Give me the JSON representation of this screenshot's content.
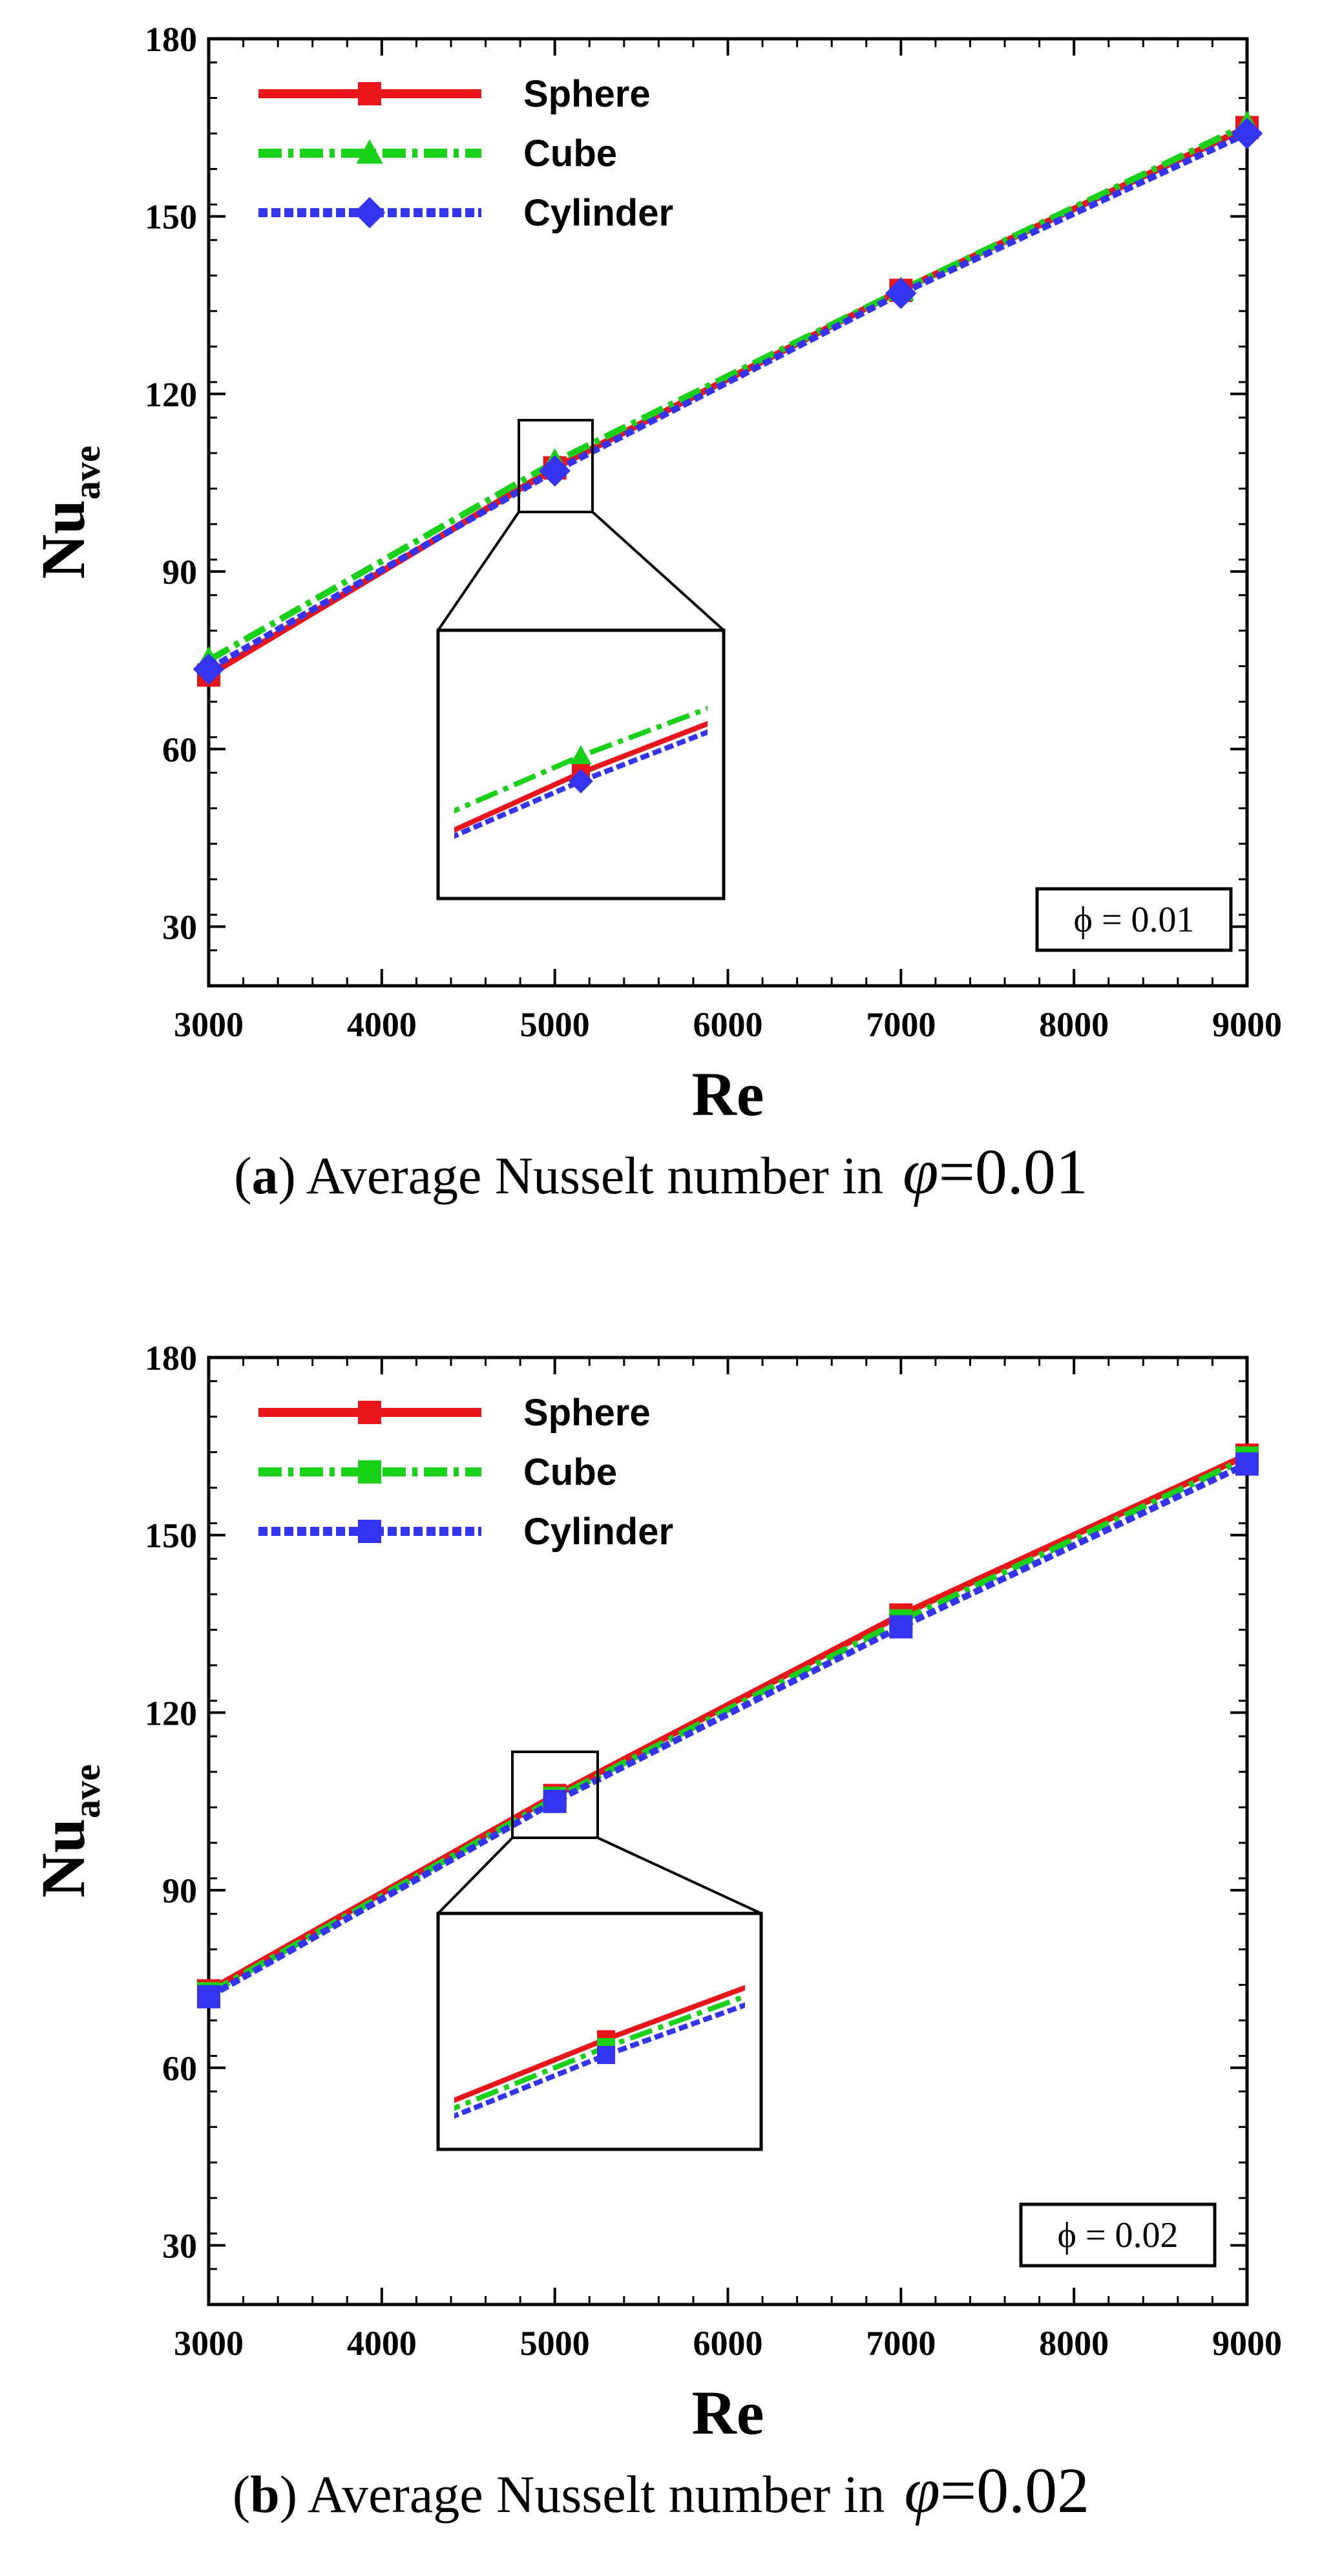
{
  "chart_data": [
    {
      "type": "line",
      "panel_letter": "a",
      "caption_text": "Average Nusselt number in",
      "caption_symbol": "φ",
      "caption_value": "=0.01",
      "annotation_symbol": "ϕ",
      "annotation_value": " = 0.01",
      "xlabel": "Re",
      "ylabel_main": "Nu",
      "ylabel_sub": "ave",
      "xlim": [
        3000,
        9000
      ],
      "ylim": [
        20,
        180
      ],
      "xticks": [
        "3000",
        "4000",
        "5000",
        "6000",
        "7000",
        "8000",
        "9000"
      ],
      "yticks": [
        "30",
        "60",
        "90",
        "120",
        "150",
        "180"
      ],
      "x": [
        3000,
        5000,
        7000,
        9000
      ],
      "series": [
        {
          "name": "Sphere",
          "values": [
            72.5,
            107.5,
            137.5,
            165
          ],
          "color": "#e8161b",
          "marker": "square",
          "dash": ""
        },
        {
          "name": "Cube",
          "values": [
            75,
            108.5,
            137.5,
            165.5
          ],
          "color": "#19d119",
          "marker": "triangle",
          "dash": "36,10,8,10"
        },
        {
          "name": "Cylinder",
          "values": [
            73.5,
            107,
            137,
            164
          ],
          "color": "#3434f0",
          "marker": "diamond",
          "dash": "14,6"
        }
      ],
      "inset": {
        "x_range": [
          4780,
          5220
        ],
        "y_range": [
          100,
          116
        ]
      }
    },
    {
      "type": "line",
      "panel_letter": "b",
      "caption_text": "Average Nusselt number in",
      "caption_symbol": "φ",
      "caption_value": "=0.02",
      "annotation_symbol": "ϕ",
      "annotation_value": " = 0.02",
      "xlabel": "Re",
      "ylabel_main": "Nu",
      "ylabel_sub": "ave",
      "xlim": [
        3000,
        9000
      ],
      "ylim": [
        20,
        180
      ],
      "xticks": [
        "3000",
        "4000",
        "5000",
        "6000",
        "7000",
        "8000",
        "9000"
      ],
      "yticks": [
        "30",
        "60",
        "90",
        "120",
        "150",
        "180"
      ],
      "x": [
        3000,
        5000,
        7000,
        9000
      ],
      "series": [
        {
          "name": "Sphere",
          "values": [
            73,
            106,
            136.5,
            163.5
          ],
          "color": "#e8161b",
          "marker": "square",
          "dash": ""
        },
        {
          "name": "Cube",
          "values": [
            72.5,
            105.5,
            135.5,
            163
          ],
          "color": "#19d119",
          "marker": "square",
          "dash": "36,10,8,10"
        },
        {
          "name": "Cylinder",
          "values": [
            72,
            105,
            134.5,
            162
          ],
          "color": "#3434f0",
          "marker": "square",
          "dash": "14,6"
        }
      ],
      "inset": {
        "x_range": [
          4740,
          5240
        ],
        "y_range": [
          99,
          114
        ]
      }
    }
  ]
}
